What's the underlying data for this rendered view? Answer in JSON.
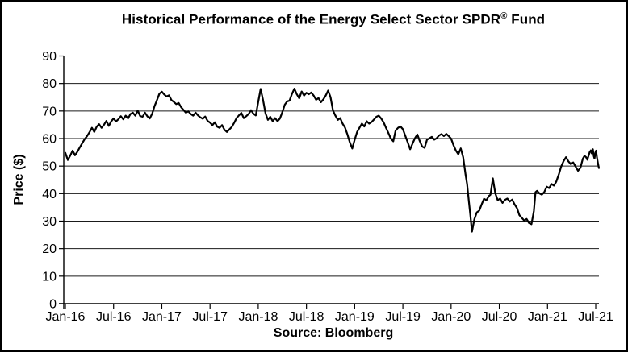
{
  "title": {
    "main": "Historical Performance of the Energy Select Sector SPDR",
    "registered_mark": "®",
    "tail": " Fund"
  },
  "source_caption": "Source: Bloomberg",
  "colors": {
    "line": "#000000",
    "grid": "#1a1a1a",
    "axis": "#000000",
    "background": "#ffffff",
    "border": "#000000"
  },
  "chart_data": {
    "type": "line",
    "title": "Historical Performance of the Energy Select Sector SPDR® Fund",
    "xlabel": "",
    "ylabel": "Price ($)",
    "x_unit": "months since Jan-2016",
    "xlim": [
      0,
      66.4
    ],
    "ylim": [
      0,
      90
    ],
    "yticks": [
      0,
      10,
      20,
      30,
      40,
      50,
      60,
      70,
      80,
      90
    ],
    "xtick_months": [
      0,
      6,
      12,
      18,
      24,
      30,
      36,
      42,
      48,
      54,
      60,
      66
    ],
    "xtick_labels": [
      "Jan-16",
      "Jul-16",
      "Jan-17",
      "Jul-17",
      "Jan-18",
      "Jul-18",
      "Jan-19",
      "Jul-19",
      "Jan-20",
      "Jul-20",
      "Jan-21",
      "Jul-21"
    ],
    "grid": "horizontal-black",
    "legend": "none",
    "series": [
      {
        "name": "Energy Select Sector SPDR Fund price ($)",
        "points": [
          [
            0.0,
            54.8
          ],
          [
            0.3,
            52.2
          ],
          [
            0.6,
            53.8
          ],
          [
            0.9,
            55.6
          ],
          [
            1.2,
            53.9
          ],
          [
            1.5,
            55.2
          ],
          [
            1.8,
            56.8
          ],
          [
            2.1,
            58.3
          ],
          [
            2.4,
            59.8
          ],
          [
            2.7,
            60.9
          ],
          [
            3.0,
            62.3
          ],
          [
            3.3,
            63.9
          ],
          [
            3.6,
            62.4
          ],
          [
            3.9,
            64.3
          ],
          [
            4.2,
            65.2
          ],
          [
            4.5,
            63.9
          ],
          [
            4.8,
            65.0
          ],
          [
            5.1,
            66.4
          ],
          [
            5.4,
            64.6
          ],
          [
            5.7,
            66.2
          ],
          [
            6.0,
            67.3
          ],
          [
            6.3,
            66.2
          ],
          [
            6.6,
            67.0
          ],
          [
            6.9,
            68.1
          ],
          [
            7.2,
            67.0
          ],
          [
            7.5,
            68.3
          ],
          [
            7.8,
            67.3
          ],
          [
            8.1,
            68.9
          ],
          [
            8.4,
            69.4
          ],
          [
            8.7,
            68.3
          ],
          [
            9.0,
            70.2
          ],
          [
            9.3,
            68.2
          ],
          [
            9.6,
            67.9
          ],
          [
            9.9,
            69.4
          ],
          [
            10.2,
            68.1
          ],
          [
            10.5,
            67.3
          ],
          [
            10.8,
            69.0
          ],
          [
            11.1,
            71.8
          ],
          [
            11.4,
            74.0
          ],
          [
            11.7,
            76.3
          ],
          [
            12.0,
            77.0
          ],
          [
            12.3,
            76.0
          ],
          [
            12.6,
            75.3
          ],
          [
            12.9,
            75.7
          ],
          [
            13.2,
            74.0
          ],
          [
            13.5,
            73.3
          ],
          [
            13.8,
            72.5
          ],
          [
            14.1,
            72.9
          ],
          [
            14.4,
            71.4
          ],
          [
            14.7,
            70.4
          ],
          [
            15.0,
            69.4
          ],
          [
            15.3,
            69.9
          ],
          [
            15.6,
            68.9
          ],
          [
            15.9,
            68.3
          ],
          [
            16.2,
            69.4
          ],
          [
            16.5,
            68.4
          ],
          [
            16.8,
            67.7
          ],
          [
            17.1,
            67.2
          ],
          [
            17.4,
            68.0
          ],
          [
            17.7,
            66.4
          ],
          [
            18.0,
            65.8
          ],
          [
            18.3,
            64.9
          ],
          [
            18.6,
            65.9
          ],
          [
            18.9,
            64.3
          ],
          [
            19.2,
            63.9
          ],
          [
            19.5,
            64.9
          ],
          [
            19.8,
            63.2
          ],
          [
            20.1,
            62.4
          ],
          [
            20.4,
            63.3
          ],
          [
            20.7,
            64.2
          ],
          [
            21.0,
            65.7
          ],
          [
            21.3,
            67.4
          ],
          [
            21.6,
            68.4
          ],
          [
            21.9,
            69.3
          ],
          [
            22.2,
            67.4
          ],
          [
            22.5,
            68.1
          ],
          [
            22.8,
            68.9
          ],
          [
            23.1,
            70.3
          ],
          [
            23.4,
            69.0
          ],
          [
            23.7,
            68.4
          ],
          [
            24.0,
            73.3
          ],
          [
            24.3,
            78.0
          ],
          [
            24.6,
            74.0
          ],
          [
            24.9,
            69.2
          ],
          [
            25.2,
            66.8
          ],
          [
            25.5,
            67.9
          ],
          [
            25.8,
            66.3
          ],
          [
            26.1,
            67.4
          ],
          [
            26.4,
            66.3
          ],
          [
            26.7,
            67.3
          ],
          [
            27.0,
            69.6
          ],
          [
            27.3,
            72.3
          ],
          [
            27.6,
            73.5
          ],
          [
            27.9,
            73.8
          ],
          [
            28.2,
            76.2
          ],
          [
            28.5,
            78.1
          ],
          [
            28.8,
            76.1
          ],
          [
            29.1,
            74.6
          ],
          [
            29.4,
            77.1
          ],
          [
            29.7,
            75.6
          ],
          [
            30.0,
            76.6
          ],
          [
            30.3,
            76.1
          ],
          [
            30.6,
            76.7
          ],
          [
            30.9,
            75.6
          ],
          [
            31.2,
            74.1
          ],
          [
            31.5,
            74.7
          ],
          [
            31.8,
            73.2
          ],
          [
            32.1,
            74.2
          ],
          [
            32.4,
            75.6
          ],
          [
            32.7,
            77.4
          ],
          [
            33.0,
            75.0
          ],
          [
            33.3,
            70.2
          ],
          [
            33.6,
            68.3
          ],
          [
            33.9,
            66.8
          ],
          [
            34.2,
            67.4
          ],
          [
            34.5,
            65.4
          ],
          [
            34.8,
            64.0
          ],
          [
            35.1,
            61.5
          ],
          [
            35.4,
            58.6
          ],
          [
            35.7,
            56.4
          ],
          [
            36.0,
            59.6
          ],
          [
            36.3,
            62.4
          ],
          [
            36.6,
            63.9
          ],
          [
            36.9,
            65.4
          ],
          [
            37.2,
            64.4
          ],
          [
            37.5,
            66.3
          ],
          [
            37.8,
            65.4
          ],
          [
            38.1,
            66.0
          ],
          [
            38.4,
            66.9
          ],
          [
            38.7,
            67.9
          ],
          [
            39.0,
            68.3
          ],
          [
            39.3,
            67.3
          ],
          [
            39.6,
            65.9
          ],
          [
            39.9,
            63.9
          ],
          [
            40.2,
            62.0
          ],
          [
            40.5,
            60.0
          ],
          [
            40.8,
            59.0
          ],
          [
            41.1,
            62.9
          ],
          [
            41.4,
            63.9
          ],
          [
            41.7,
            64.4
          ],
          [
            42.0,
            63.4
          ],
          [
            42.3,
            61.0
          ],
          [
            42.6,
            58.6
          ],
          [
            42.9,
            56.1
          ],
          [
            43.2,
            58.1
          ],
          [
            43.5,
            60.1
          ],
          [
            43.8,
            61.5
          ],
          [
            44.1,
            59.1
          ],
          [
            44.4,
            57.1
          ],
          [
            44.7,
            56.6
          ],
          [
            45.0,
            59.6
          ],
          [
            45.3,
            60.1
          ],
          [
            45.6,
            60.6
          ],
          [
            45.9,
            59.6
          ],
          [
            46.2,
            60.1
          ],
          [
            46.5,
            61.1
          ],
          [
            46.8,
            61.6
          ],
          [
            47.1,
            60.9
          ],
          [
            47.4,
            61.7
          ],
          [
            47.7,
            60.9
          ],
          [
            48.0,
            60.0
          ],
          [
            48.3,
            57.6
          ],
          [
            48.6,
            55.6
          ],
          [
            48.9,
            54.3
          ],
          [
            49.2,
            56.4
          ],
          [
            49.5,
            53.2
          ],
          [
            49.8,
            46.8
          ],
          [
            50.0,
            43.4
          ],
          [
            50.2,
            37.6
          ],
          [
            50.4,
            32.2
          ],
          [
            50.6,
            26.2
          ],
          [
            50.9,
            30.7
          ],
          [
            51.2,
            33.2
          ],
          [
            51.5,
            33.8
          ],
          [
            51.8,
            36.1
          ],
          [
            52.1,
            38.1
          ],
          [
            52.4,
            37.6
          ],
          [
            52.7,
            39.1
          ],
          [
            52.9,
            39.6
          ],
          [
            53.2,
            45.5
          ],
          [
            53.5,
            40.1
          ],
          [
            53.8,
            37.6
          ],
          [
            54.1,
            38.2
          ],
          [
            54.4,
            36.6
          ],
          [
            54.7,
            37.7
          ],
          [
            55.0,
            38.2
          ],
          [
            55.3,
            37.1
          ],
          [
            55.6,
            37.8
          ],
          [
            55.9,
            36.1
          ],
          [
            56.2,
            34.7
          ],
          [
            56.5,
            32.2
          ],
          [
            56.8,
            31.2
          ],
          [
            57.1,
            30.2
          ],
          [
            57.4,
            30.8
          ],
          [
            57.7,
            29.3
          ],
          [
            58.0,
            28.9
          ],
          [
            58.3,
            33.7
          ],
          [
            58.5,
            40.5
          ],
          [
            58.7,
            41.0
          ],
          [
            59.0,
            40.1
          ],
          [
            59.3,
            39.6
          ],
          [
            59.6,
            40.6
          ],
          [
            59.9,
            42.5
          ],
          [
            60.2,
            42.0
          ],
          [
            60.5,
            43.5
          ],
          [
            60.8,
            42.9
          ],
          [
            61.1,
            44.4
          ],
          [
            61.4,
            46.9
          ],
          [
            61.7,
            49.8
          ],
          [
            62.0,
            51.8
          ],
          [
            62.3,
            53.2
          ],
          [
            62.6,
            51.7
          ],
          [
            62.9,
            50.7
          ],
          [
            63.2,
            51.3
          ],
          [
            63.5,
            49.8
          ],
          [
            63.8,
            48.3
          ],
          [
            64.1,
            49.4
          ],
          [
            64.4,
            52.7
          ],
          [
            64.6,
            53.7
          ],
          [
            64.8,
            53.2
          ],
          [
            64.95,
            52.3
          ],
          [
            65.1,
            53.7
          ],
          [
            65.25,
            55.1
          ],
          [
            65.4,
            55.7
          ],
          [
            65.5,
            54.6
          ],
          [
            65.65,
            56.1
          ],
          [
            65.75,
            53.7
          ],
          [
            65.85,
            52.7
          ],
          [
            65.95,
            54.8
          ],
          [
            66.05,
            55.6
          ],
          [
            66.15,
            53.2
          ],
          [
            66.3,
            50.7
          ],
          [
            66.4,
            49.3
          ]
        ]
      }
    ]
  }
}
